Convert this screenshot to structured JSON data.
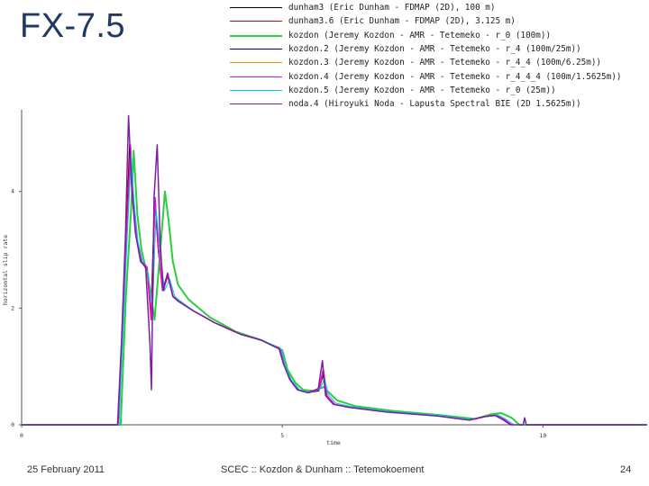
{
  "slide": {
    "title": "FX-7.5",
    "footer_date": "25 February 2011",
    "footer_center": "SCEC :: Kozdon & Dunham :: Tetemokoement",
    "page_number": "24"
  },
  "chart_data": {
    "type": "line",
    "title": "",
    "xlabel": "time",
    "ylabel": "horizontal slip rate",
    "xlim": [
      0,
      12
    ],
    "ylim": [
      0,
      5.4
    ],
    "x_ticks": [
      "0",
      "5",
      "10"
    ],
    "y_ticks": [
      "0",
      "2",
      "4"
    ],
    "grid": false,
    "legend_position": "top",
    "series": [
      {
        "name": "dunham3 (Eric Dunham - FDMAP (2D), 100 m)",
        "color": "#000000",
        "width": 1,
        "points": [
          [
            0,
            0
          ],
          [
            1.85,
            0
          ],
          [
            1.93,
            1.5
          ],
          [
            2.0,
            3.2
          ],
          [
            2.07,
            4.8
          ],
          [
            2.12,
            3.9
          ],
          [
            2.2,
            3.2
          ],
          [
            2.3,
            2.8
          ],
          [
            2.4,
            2.7
          ],
          [
            2.48,
            1.9
          ],
          [
            2.55,
            3.9
          ],
          [
            2.62,
            3.0
          ],
          [
            2.7,
            2.3
          ],
          [
            2.8,
            2.6
          ],
          [
            2.9,
            2.2
          ],
          [
            3.0,
            2.15
          ],
          [
            3.3,
            1.95
          ],
          [
            3.7,
            1.75
          ],
          [
            4.2,
            1.55
          ],
          [
            4.6,
            1.45
          ],
          [
            4.95,
            1.32
          ],
          [
            5.03,
            1.05
          ],
          [
            5.15,
            0.78
          ],
          [
            5.3,
            0.6
          ],
          [
            5.5,
            0.55
          ],
          [
            5.7,
            0.58
          ],
          [
            5.78,
            0.85
          ],
          [
            5.85,
            0.5
          ],
          [
            6.0,
            0.35
          ],
          [
            6.3,
            0.3
          ],
          [
            7.0,
            0.22
          ],
          [
            8.0,
            0.15
          ],
          [
            8.6,
            0.09
          ],
          [
            8.9,
            0.15
          ],
          [
            9.1,
            0.17
          ],
          [
            9.25,
            0.1
          ],
          [
            9.4,
            0
          ],
          [
            12,
            0
          ]
        ]
      },
      {
        "name": "dunham3.6 (Eric Dunham - FDMAP (2D), 3.125 m)",
        "color": "#e00000",
        "width": 1,
        "points": [
          [
            0,
            0
          ],
          [
            1.85,
            0
          ],
          [
            1.93,
            1.5
          ],
          [
            2.0,
            3.2
          ],
          [
            2.08,
            4.75
          ],
          [
            2.13,
            3.9
          ],
          [
            2.2,
            3.2
          ],
          [
            2.3,
            2.8
          ],
          [
            2.4,
            2.7
          ],
          [
            2.48,
            1.8
          ],
          [
            2.55,
            3.85
          ],
          [
            2.62,
            3.0
          ],
          [
            2.7,
            2.3
          ],
          [
            2.8,
            2.55
          ],
          [
            2.9,
            2.2
          ],
          [
            3.0,
            2.12
          ],
          [
            3.3,
            1.95
          ],
          [
            3.7,
            1.75
          ],
          [
            4.2,
            1.55
          ],
          [
            4.6,
            1.45
          ],
          [
            4.95,
            1.3
          ],
          [
            5.03,
            1.03
          ],
          [
            5.15,
            0.77
          ],
          [
            5.3,
            0.6
          ],
          [
            5.5,
            0.55
          ],
          [
            5.7,
            0.6
          ],
          [
            5.78,
            0.95
          ],
          [
            5.85,
            0.5
          ],
          [
            6.0,
            0.35
          ],
          [
            6.3,
            0.3
          ],
          [
            7.0,
            0.22
          ],
          [
            8.0,
            0.15
          ],
          [
            8.6,
            0.08
          ],
          [
            8.9,
            0.14
          ],
          [
            9.1,
            0.16
          ],
          [
            9.25,
            0.09
          ],
          [
            9.4,
            0
          ],
          [
            12,
            0
          ]
        ]
      },
      {
        "name": "kozdon (Jeremy Kozdon - AMR - Tetemeko - r_0 (100m))",
        "color": "#2ecc40",
        "width": 2,
        "points": [
          [
            0,
            0
          ],
          [
            1.9,
            0
          ],
          [
            2.0,
            2.2
          ],
          [
            2.1,
            3.7
          ],
          [
            2.15,
            4.7
          ],
          [
            2.22,
            3.6
          ],
          [
            2.3,
            3.0
          ],
          [
            2.45,
            2.4
          ],
          [
            2.55,
            1.8
          ],
          [
            2.65,
            2.9
          ],
          [
            2.75,
            4.0
          ],
          [
            2.82,
            3.5
          ],
          [
            2.9,
            2.8
          ],
          [
            3.0,
            2.4
          ],
          [
            3.2,
            2.15
          ],
          [
            3.6,
            1.85
          ],
          [
            4.1,
            1.6
          ],
          [
            4.6,
            1.45
          ],
          [
            5.0,
            1.28
          ],
          [
            5.1,
            0.95
          ],
          [
            5.25,
            0.72
          ],
          [
            5.4,
            0.6
          ],
          [
            5.6,
            0.58
          ],
          [
            5.8,
            0.65
          ],
          [
            5.9,
            0.55
          ],
          [
            6.05,
            0.42
          ],
          [
            6.4,
            0.32
          ],
          [
            7.1,
            0.24
          ],
          [
            8.1,
            0.16
          ],
          [
            8.7,
            0.1
          ],
          [
            9.0,
            0.18
          ],
          [
            9.2,
            0.2
          ],
          [
            9.4,
            0.12
          ],
          [
            9.55,
            0
          ],
          [
            12,
            0
          ]
        ]
      },
      {
        "name": "kozdon.2 (Jeremy Kozdon - AMR - Tetemeko - r_4 (100m/25m))",
        "color": "#000080",
        "width": 1,
        "points": [
          [
            0,
            0
          ],
          [
            1.86,
            0
          ],
          [
            1.94,
            1.6
          ],
          [
            2.02,
            3.3
          ],
          [
            2.09,
            4.75
          ],
          [
            2.14,
            3.9
          ],
          [
            2.21,
            3.2
          ],
          [
            2.31,
            2.8
          ],
          [
            2.41,
            2.7
          ],
          [
            2.49,
            1.85
          ],
          [
            2.56,
            3.9
          ],
          [
            2.63,
            3.0
          ],
          [
            2.71,
            2.3
          ],
          [
            2.81,
            2.55
          ],
          [
            2.91,
            2.2
          ],
          [
            3.01,
            2.12
          ],
          [
            3.31,
            1.95
          ],
          [
            3.71,
            1.75
          ],
          [
            4.21,
            1.55
          ],
          [
            4.61,
            1.45
          ],
          [
            4.96,
            1.3
          ],
          [
            5.04,
            1.03
          ],
          [
            5.16,
            0.77
          ],
          [
            5.31,
            0.6
          ],
          [
            5.51,
            0.55
          ],
          [
            5.71,
            0.6
          ],
          [
            5.79,
            0.9
          ],
          [
            5.86,
            0.5
          ],
          [
            6.01,
            0.35
          ],
          [
            6.31,
            0.3
          ],
          [
            7.01,
            0.22
          ],
          [
            8.01,
            0.15
          ],
          [
            8.61,
            0.08
          ],
          [
            8.91,
            0.14
          ],
          [
            9.11,
            0.16
          ],
          [
            9.26,
            0.09
          ],
          [
            9.41,
            0
          ],
          [
            12,
            0
          ]
        ]
      },
      {
        "name": "kozdon.3 (Jeremy Kozdon - AMR - Tetemeko - r_4_4 (100m/6.25m))",
        "color": "#ff8c00",
        "width": 1,
        "points": [
          [
            0,
            0
          ],
          [
            1.86,
            0
          ],
          [
            1.94,
            1.6
          ],
          [
            2.02,
            3.3
          ],
          [
            2.09,
            4.8
          ],
          [
            2.14,
            3.9
          ],
          [
            2.21,
            3.2
          ],
          [
            2.31,
            2.8
          ],
          [
            2.41,
            2.7
          ],
          [
            2.49,
            1.8
          ],
          [
            2.56,
            3.9
          ],
          [
            2.63,
            3.0
          ],
          [
            2.71,
            2.3
          ],
          [
            2.81,
            2.55
          ],
          [
            2.91,
            2.2
          ],
          [
            3.01,
            2.12
          ],
          [
            3.31,
            1.95
          ],
          [
            3.71,
            1.75
          ],
          [
            4.21,
            1.55
          ],
          [
            4.61,
            1.45
          ],
          [
            4.96,
            1.3
          ],
          [
            5.04,
            1.03
          ],
          [
            5.16,
            0.77
          ],
          [
            5.31,
            0.6
          ],
          [
            5.51,
            0.55
          ],
          [
            5.71,
            0.6
          ],
          [
            5.79,
            0.95
          ],
          [
            5.86,
            0.5
          ],
          [
            6.01,
            0.35
          ],
          [
            6.31,
            0.3
          ],
          [
            7.01,
            0.22
          ],
          [
            8.01,
            0.15
          ],
          [
            8.61,
            0.08
          ],
          [
            8.91,
            0.14
          ],
          [
            9.11,
            0.16
          ],
          [
            9.26,
            0.09
          ],
          [
            9.41,
            0
          ],
          [
            12,
            0
          ]
        ]
      },
      {
        "name": "kozdon.4 (Jeremy Kozdon - AMR - Tetemeko - r_4_4_4 (100m/1.5625m))",
        "color": "#ff00ff",
        "width": 1,
        "points": [
          [
            0,
            0
          ],
          [
            1.86,
            0
          ],
          [
            1.94,
            1.6
          ],
          [
            2.02,
            3.3
          ],
          [
            2.09,
            4.8
          ],
          [
            2.14,
            3.9
          ],
          [
            2.21,
            3.2
          ],
          [
            2.31,
            2.8
          ],
          [
            2.41,
            2.7
          ],
          [
            2.49,
            1.8
          ],
          [
            2.56,
            3.9
          ],
          [
            2.63,
            3.0
          ],
          [
            2.71,
            2.3
          ],
          [
            2.81,
            2.55
          ],
          [
            2.91,
            2.2
          ],
          [
            3.01,
            2.12
          ],
          [
            3.31,
            1.95
          ],
          [
            3.71,
            1.75
          ],
          [
            4.21,
            1.55
          ],
          [
            4.61,
            1.45
          ],
          [
            4.96,
            1.3
          ],
          [
            5.04,
            1.03
          ],
          [
            5.16,
            0.77
          ],
          [
            5.31,
            0.6
          ],
          [
            5.51,
            0.55
          ],
          [
            5.71,
            0.6
          ],
          [
            5.79,
            0.95
          ],
          [
            5.86,
            0.5
          ],
          [
            6.01,
            0.35
          ],
          [
            6.31,
            0.3
          ],
          [
            7.01,
            0.22
          ],
          [
            8.01,
            0.15
          ],
          [
            8.61,
            0.08
          ],
          [
            8.91,
            0.14
          ],
          [
            9.11,
            0.16
          ],
          [
            9.26,
            0.09
          ],
          [
            9.41,
            0
          ],
          [
            12,
            0
          ]
        ]
      },
      {
        "name": "kozdon.5 (Jeremy Kozdon - AMR - Tetemeko - r_0 (25m))",
        "color": "#00c8e6",
        "width": 1,
        "points": [
          [
            0,
            0
          ],
          [
            1.87,
            0
          ],
          [
            1.95,
            1.7
          ],
          [
            2.03,
            3.3
          ],
          [
            2.1,
            4.6
          ],
          [
            2.16,
            3.8
          ],
          [
            2.23,
            3.15
          ],
          [
            2.33,
            2.75
          ],
          [
            2.43,
            2.6
          ],
          [
            2.51,
            1.95
          ],
          [
            2.58,
            3.7
          ],
          [
            2.66,
            2.95
          ],
          [
            2.74,
            2.3
          ],
          [
            2.84,
            2.5
          ],
          [
            2.94,
            2.2
          ],
          [
            3.04,
            2.12
          ],
          [
            3.34,
            1.93
          ],
          [
            3.74,
            1.73
          ],
          [
            4.24,
            1.54
          ],
          [
            4.64,
            1.44
          ],
          [
            4.98,
            1.3
          ],
          [
            5.06,
            1.0
          ],
          [
            5.18,
            0.76
          ],
          [
            5.33,
            0.6
          ],
          [
            5.53,
            0.56
          ],
          [
            5.73,
            0.62
          ],
          [
            5.81,
            0.8
          ],
          [
            5.88,
            0.52
          ],
          [
            6.03,
            0.37
          ],
          [
            6.33,
            0.31
          ],
          [
            7.03,
            0.23
          ],
          [
            8.03,
            0.16
          ],
          [
            8.63,
            0.09
          ],
          [
            8.93,
            0.15
          ],
          [
            9.13,
            0.17
          ],
          [
            9.28,
            0.1
          ],
          [
            9.45,
            0
          ],
          [
            12,
            0
          ]
        ]
      },
      {
        "name": "noda.4 (Hiroyuki Noda - Lapusta Spectral BIE (2D 1.5625m))",
        "color": "#7a1fa2",
        "width": 1.5,
        "points": [
          [
            0,
            0
          ],
          [
            1.84,
            0
          ],
          [
            1.92,
            1.5
          ],
          [
            1.99,
            3.2
          ],
          [
            2.05,
            5.3
          ],
          [
            2.11,
            4.1
          ],
          [
            2.18,
            3.3
          ],
          [
            2.28,
            2.8
          ],
          [
            2.38,
            2.7
          ],
          [
            2.46,
            1.4
          ],
          [
            2.49,
            0.6
          ],
          [
            2.54,
            3.9
          ],
          [
            2.6,
            4.8
          ],
          [
            2.66,
            3.1
          ],
          [
            2.72,
            2.3
          ],
          [
            2.8,
            2.6
          ],
          [
            2.9,
            2.2
          ],
          [
            3.0,
            2.12
          ],
          [
            3.3,
            1.95
          ],
          [
            3.7,
            1.75
          ],
          [
            4.2,
            1.55
          ],
          [
            4.6,
            1.45
          ],
          [
            4.94,
            1.3
          ],
          [
            5.02,
            1.05
          ],
          [
            5.14,
            0.78
          ],
          [
            5.29,
            0.6
          ],
          [
            5.49,
            0.55
          ],
          [
            5.69,
            0.62
          ],
          [
            5.77,
            1.1
          ],
          [
            5.83,
            0.5
          ],
          [
            5.98,
            0.35
          ],
          [
            6.28,
            0.3
          ],
          [
            6.98,
            0.22
          ],
          [
            7.98,
            0.15
          ],
          [
            8.58,
            0.08
          ],
          [
            8.88,
            0.14
          ],
          [
            9.08,
            0.16
          ],
          [
            9.23,
            0.09
          ],
          [
            9.38,
            0
          ],
          [
            9.62,
            0
          ],
          [
            9.65,
            0.12
          ],
          [
            9.68,
            0
          ],
          [
            12,
            0
          ]
        ]
      }
    ]
  }
}
